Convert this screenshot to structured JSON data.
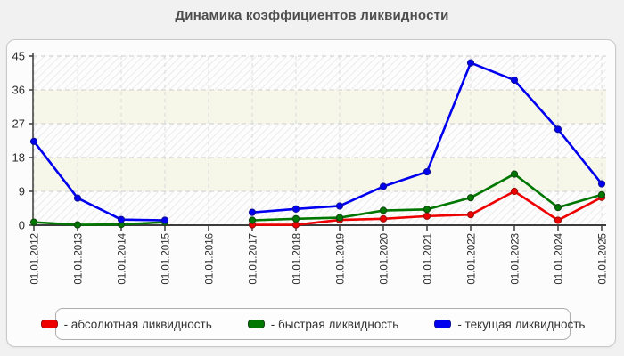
{
  "chart_data": {
    "type": "line",
    "title": "Динамика коэффициентов ликвидности",
    "categories": [
      "01.01.2012",
      "01.01.2013",
      "01.01.2014",
      "01.01.2015",
      "01.01.2016",
      "01.01.2017",
      "01.01.2018",
      "01.01.2019",
      "01.01.2020",
      "01.01.2021",
      "01.01.2022",
      "01.01.2023",
      "01.01.2024",
      "01.01.2025"
    ],
    "series": [
      {
        "name": "абсолютная ликвидность",
        "color": "#ee0000",
        "edge": "#991111",
        "values": [
          null,
          null,
          null,
          null,
          null,
          0.1,
          0.1,
          1.4,
          1.7,
          2.4,
          2.8,
          9.0,
          1.3,
          7.4
        ]
      },
      {
        "name": "быстрая ликвидность",
        "color": "#007700",
        "edge": "#114411",
        "values": [
          0.8,
          0.1,
          0.2,
          0.8,
          null,
          1.3,
          1.7,
          2.0,
          3.9,
          4.2,
          7.3,
          13.6,
          4.7,
          8.1
        ]
      },
      {
        "name": "текущая ликвидность",
        "color": "#0000ee",
        "edge": "#111199",
        "values": [
          22.3,
          7.2,
          1.5,
          1.3,
          null,
          3.4,
          4.3,
          5.1,
          10.3,
          14.2,
          43.2,
          38.6,
          25.5,
          11.0
        ]
      }
    ],
    "y_ticks": [
      0,
      9,
      18,
      27,
      36,
      45
    ],
    "ylim": [
      0,
      45
    ],
    "grid": "dashed-horizontal-and-vertical",
    "plot_bands": "alternating hatched and ivory horizontal bands every 9 units",
    "legend_position": "bottom",
    "missing_data_note": "no data points at 01.01.2016; red series starts at 01.01.2017"
  },
  "legend": {
    "items": [
      {
        "label": "- абсолютная ликвидность"
      },
      {
        "label": "- быстрая ликвидность"
      },
      {
        "label": "- текущая ликвидность"
      }
    ]
  },
  "style": {
    "band_ivory": "#f7f7e9",
    "band_hatch_line": "#e7e7e7",
    "band_hatch_bg": "#fdfdfd",
    "grid_h": "#cdcdcd",
    "grid_v": "#dadada",
    "axis": "#3c3c3c",
    "tick_label": "#2b2b2b"
  }
}
